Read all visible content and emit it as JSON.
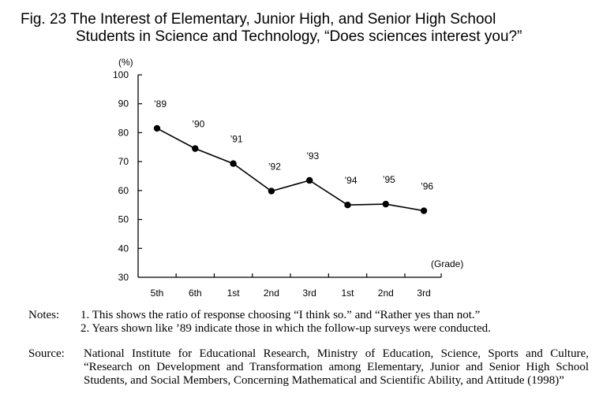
{
  "title": {
    "line1": "Fig. 23  The Interest of Elementary, Junior High, and Senior High School",
    "line2": "Students in Science and Technology, “Does sciences interest you?”"
  },
  "chart_data": {
    "type": "line",
    "categories": [
      "5th",
      "6th",
      "1st",
      "2nd",
      "3rd",
      "1st",
      "2nd",
      "3rd"
    ],
    "values": [
      81.5,
      74.5,
      69.3,
      59.8,
      63.5,
      55.0,
      55.3,
      53.0
    ],
    "point_labels": [
      "’89",
      "’90",
      "’91",
      "’92",
      "’93",
      "’94",
      "’95",
      "’96"
    ],
    "ylim": [
      30,
      100
    ],
    "yticks": [
      30,
      40,
      50,
      60,
      70,
      80,
      90,
      100
    ],
    "y_unit": "(%)",
    "xlabel": "(Grade)",
    "grid": false
  },
  "notes": {
    "head": "Notes:",
    "items": [
      "1. This shows the ratio of response choosing “I think so.” and “Rather yes than not.”",
      "2. Years shown like ’89 indicate those in which the follow-up surveys were conducted."
    ]
  },
  "source": {
    "head": "Source:",
    "text": "National Institute for Educational Research, Ministry of Education, Science, Sports and Culture, “Research on Development and Transformation among Elementary, Junior and Senior High School Students, and Social Members, Concerning Mathematical and Scientific Ability, and Attitude (1998)”"
  }
}
